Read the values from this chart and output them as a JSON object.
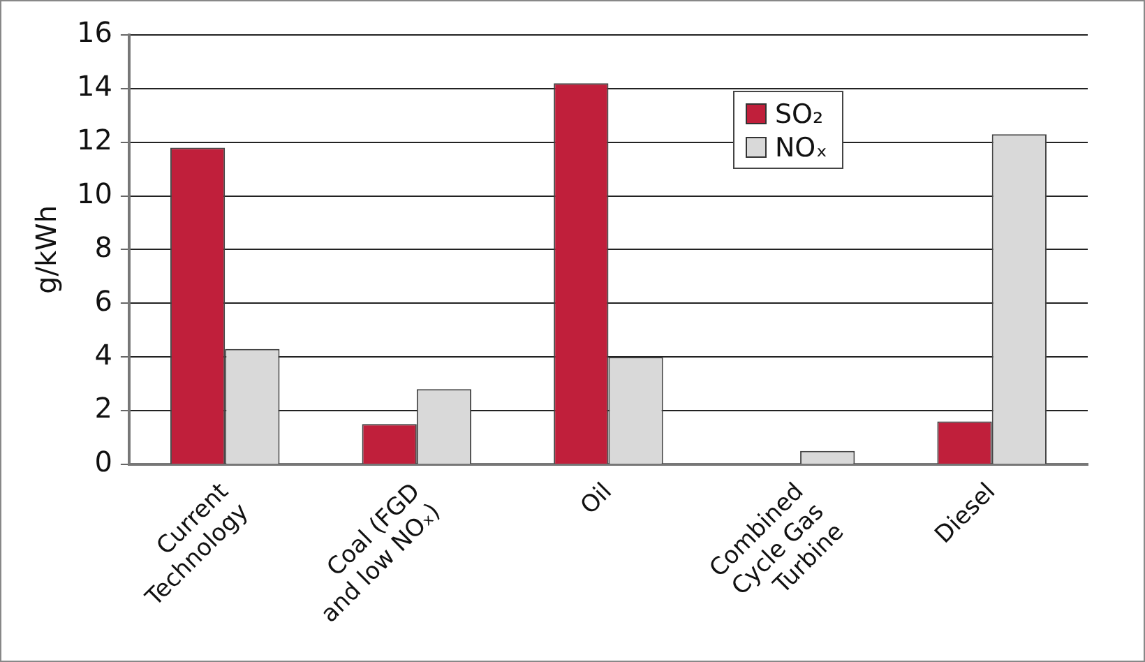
{
  "chart_data": {
    "type": "bar",
    "ylabel": "g/kWh",
    "categories": [
      "Current Technology",
      "Coal (FGD and low NOₓ)",
      "Oil",
      "Combined Cycle Gas Turbine",
      "Diesel"
    ],
    "series": [
      {
        "name": "SO₂",
        "color": "#c01f3b",
        "values": [
          11.8,
          1.5,
          14.2,
          0,
          1.6
        ]
      },
      {
        "name": "NOₓ",
        "color": "#d9d9d9",
        "values": [
          4.3,
          2.8,
          4.0,
          0.5,
          12.3
        ]
      }
    ],
    "ylim": [
      0,
      16
    ],
    "yticks": [
      0,
      2,
      4,
      6,
      8,
      10,
      12,
      14,
      16
    ],
    "grid": "y",
    "legend": "top right"
  }
}
